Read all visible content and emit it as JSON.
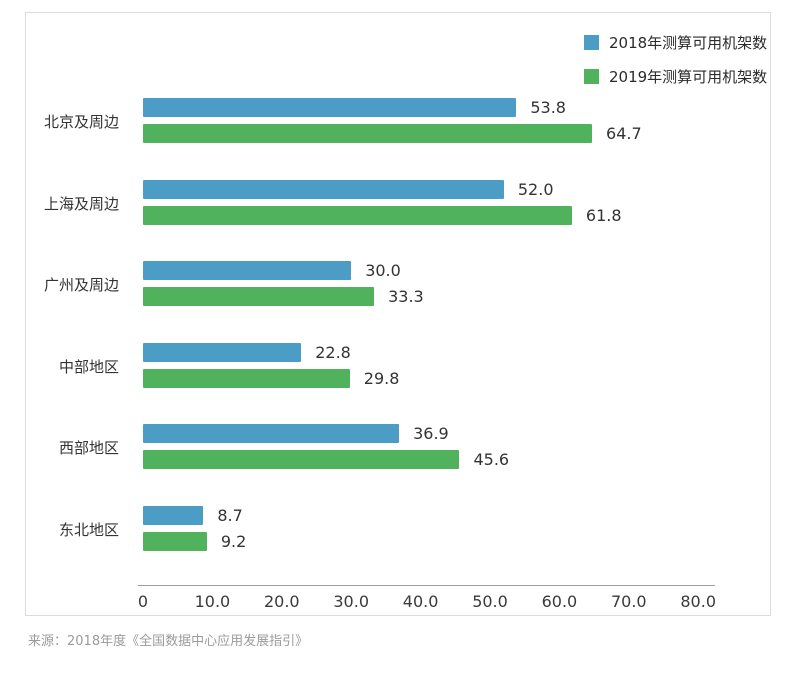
{
  "legend": {
    "items": [
      {
        "label": "2018年测算可用机架数",
        "color": "#4c9dc6"
      },
      {
        "label": "2019年测算可用机架数",
        "color": "#50b25c"
      }
    ]
  },
  "source": "来源：2018年度《全国数据中心应用发展指引》",
  "chart_data": {
    "type": "bar",
    "orientation": "horizontal",
    "title": "",
    "xlabel": "",
    "ylabel": "",
    "xlim": [
      0,
      80
    ],
    "grid": false,
    "legend_position": "top-right",
    "categories": [
      "北京及周边",
      "上海及周边",
      "广州及周边",
      "中部地区",
      "西部地区",
      "东北地区"
    ],
    "series": [
      {
        "name": "2018年测算可用机架数",
        "color": "#4c9dc6",
        "values": [
          53.8,
          52.0,
          30.0,
          22.8,
          36.9,
          8.7
        ]
      },
      {
        "name": "2019年测算可用机架数",
        "color": "#50b25c",
        "values": [
          64.7,
          61.8,
          33.3,
          29.8,
          45.6,
          9.2
        ]
      }
    ],
    "x_tick_labels": [
      "0",
      "10.0",
      "20.0",
      "30.0",
      "40.0",
      "50.0",
      "60.0",
      "70.0",
      "80.0"
    ],
    "x_tick_values": [
      0,
      10,
      20,
      30,
      40,
      50,
      60,
      70,
      80
    ]
  }
}
